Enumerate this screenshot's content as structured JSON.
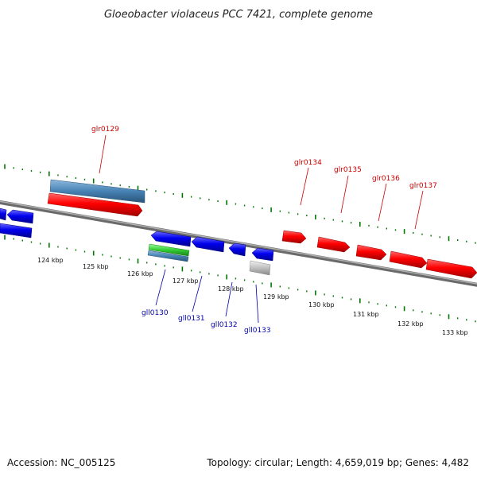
{
  "title": "Gloeobacter violaceus PCC 7421, complete genome",
  "footer": {
    "accession": "Accession: NC_005125",
    "summary": "Topology: circular; Length: 4,659,019 bp; Genes: 4,482"
  },
  "colors": {
    "forward_strand": "#ff0000",
    "reverse_strand": "#0000ee",
    "forward_label": "#cc0000",
    "reverse_label": "#0000aa",
    "tick": "#007700",
    "backbone": "#808080",
    "cds_bar": "#4682b4",
    "rna_bar": "#33cc33",
    "other": "#bbbbbb"
  },
  "ticks": {
    "labels": [
      "124 kbp",
      "125 kbp",
      "126 kbp",
      "127 kbp",
      "128 kbp",
      "129 kbp",
      "130 kbp",
      "131 kbp",
      "132 kbp",
      "133 kbp"
    ]
  },
  "genes": {
    "forward_labels": [
      "glr0129",
      "glr0134",
      "glr0135",
      "glr0136",
      "glr0137"
    ],
    "reverse_labels": [
      "gll0130",
      "gll0131",
      "gll0132",
      "gll0133"
    ]
  }
}
